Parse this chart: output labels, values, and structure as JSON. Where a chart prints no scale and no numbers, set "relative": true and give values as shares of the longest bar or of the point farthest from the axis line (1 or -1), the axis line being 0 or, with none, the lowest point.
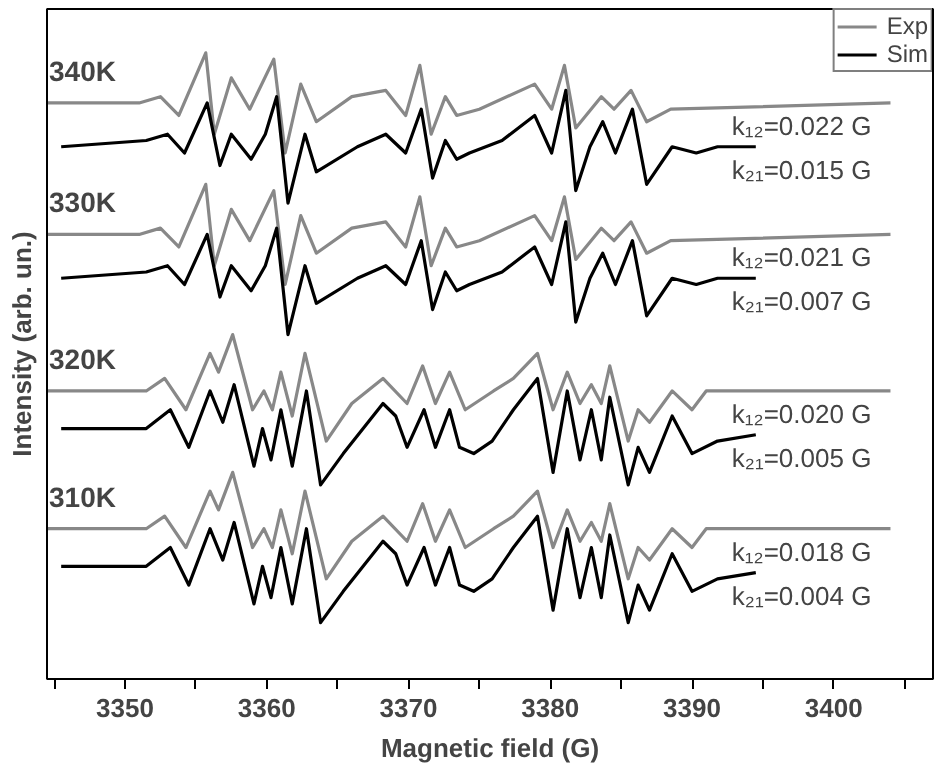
{
  "chart_data": {
    "type": "line",
    "relative": true,
    "xlabel": "Magnetic field (G)",
    "ylabel": "Intensity (arb. un.)",
    "xlim": [
      3344.5,
      3407
    ],
    "xticks": [
      {
        "value": 3345,
        "label": null
      },
      3350,
      {
        "value": 3355,
        "label": null
      },
      3360,
      {
        "value": 3365,
        "label": null
      },
      3370,
      {
        "value": 3375,
        "label": null
      },
      3380,
      {
        "value": 3385,
        "label": null
      },
      3390,
      {
        "value": 3395,
        "label": null
      },
      3400,
      {
        "value": 3405,
        "label": null
      }
    ],
    "tick_labels": "x",
    "legend": "top right",
    "grid": false,
    "series": [
      {
        "name": "Exp",
        "color": "#888888",
        "x": [
          3344.5,
          3351,
          3352.5,
          3353.8,
          3355.7,
          3356.3,
          3357.5,
          3358.8,
          3360.5,
          3361.3,
          3362.4,
          3363.5,
          3366,
          3368.4,
          3369.8,
          3370.8,
          3371.6,
          3372.6,
          3373.4,
          3375,
          3378.9,
          3380.1,
          3381,
          3381.8,
          3383.6,
          3384.5,
          3385.7,
          3386.8,
          3388.5,
          3404
        ],
        "values": [
          0.92,
          0.92,
          0.93,
          0.9,
          1,
          0.87,
          0.96,
          0.91,
          0.99,
          0.84,
          0.95,
          0.89,
          0.93,
          0.94,
          0.9,
          0.98,
          0.87,
          0.93,
          0.9,
          0.91,
          0.95,
          0.91,
          0.98,
          0.88,
          0.93,
          0.91,
          0.94,
          0.89,
          0.91,
          0.92
        ]
      },
      {
        "name": "Sim",
        "color": "#000000",
        "x": [
          3345.5,
          3351.5,
          3353,
          3354.2,
          3355.8,
          3356.7,
          3357.5,
          3358.9,
          3359.9,
          3360.7,
          3361.5,
          3362.7,
          3363.5,
          3366.4,
          3368.4,
          3369.8,
          3370.9,
          3371.7,
          3372.6,
          3373.4,
          3374.3,
          3376.6,
          3378.9,
          3380.1,
          3381.1,
          3381.8,
          3382.8,
          3383.7,
          3384.6,
          3385.8,
          3386.8,
          3388.6,
          3390.3,
          3391.8,
          3394.5
        ],
        "values": [
          0.85,
          0.86,
          0.87,
          0.84,
          0.92,
          0.82,
          0.87,
          0.83,
          0.87,
          0.93,
          0.76,
          0.87,
          0.81,
          0.85,
          0.87,
          0.84,
          0.91,
          0.8,
          0.86,
          0.83,
          0.84,
          0.86,
          0.9,
          0.84,
          0.94,
          0.78,
          0.85,
          0.89,
          0.84,
          0.91,
          0.79,
          0.85,
          0.84,
          0.85,
          0.85
        ]
      },
      {
        "color": "#888888",
        "x": [
          3344.5,
          3351,
          3352.5,
          3353.8,
          3355.7,
          3356.3,
          3357.5,
          3358.8,
          3360.5,
          3361.3,
          3362.4,
          3363.5,
          3366,
          3368.4,
          3369.8,
          3370.8,
          3371.6,
          3372.6,
          3373.4,
          3375,
          3378.9,
          3380.1,
          3381,
          3381.8,
          3383.6,
          3384.5,
          3385.7,
          3386.8,
          3388.5,
          3404
        ],
        "values": [
          0.71,
          0.71,
          0.72,
          0.69,
          0.79,
          0.66,
          0.75,
          0.7,
          0.78,
          0.63,
          0.74,
          0.68,
          0.72,
          0.73,
          0.69,
          0.77,
          0.66,
          0.72,
          0.69,
          0.7,
          0.74,
          0.7,
          0.77,
          0.67,
          0.72,
          0.7,
          0.73,
          0.68,
          0.7,
          0.71
        ]
      },
      {
        "color": "#000000",
        "x": [
          3345.5,
          3351.5,
          3353,
          3354.2,
          3355.8,
          3356.7,
          3357.5,
          3358.9,
          3359.9,
          3360.7,
          3361.5,
          3362.7,
          3363.5,
          3366.4,
          3368.4,
          3369.8,
          3370.9,
          3371.7,
          3372.6,
          3373.4,
          3374.3,
          3376.6,
          3378.9,
          3380.1,
          3381.1,
          3381.8,
          3382.8,
          3383.7,
          3384.6,
          3385.8,
          3386.8,
          3388.6,
          3390.3,
          3391.8,
          3394.5
        ],
        "values": [
          0.64,
          0.65,
          0.66,
          0.63,
          0.71,
          0.61,
          0.66,
          0.62,
          0.66,
          0.72,
          0.55,
          0.66,
          0.6,
          0.64,
          0.66,
          0.63,
          0.7,
          0.59,
          0.65,
          0.62,
          0.63,
          0.65,
          0.69,
          0.63,
          0.73,
          0.57,
          0.64,
          0.68,
          0.63,
          0.7,
          0.58,
          0.64,
          0.63,
          0.64,
          0.64
        ]
      },
      {
        "color": "#888888",
        "x": [
          3344.5,
          3351.5,
          3352.8,
          3354.3,
          3356,
          3356.6,
          3357.6,
          3359,
          3359.8,
          3360.4,
          3361,
          3361.8,
          3362.7,
          3364.2,
          3366,
          3368.2,
          3369.9,
          3371,
          3371.9,
          3372.9,
          3374,
          3376,
          3377.4,
          3379.1,
          3380.2,
          3381.2,
          3382.1,
          3382.9,
          3383.6,
          3384.2,
          3385.5,
          3386.2,
          3387,
          3388.6,
          3390,
          3391,
          3404
        ],
        "values": [
          0.46,
          0.46,
          0.48,
          0.43,
          0.52,
          0.49,
          0.55,
          0.43,
          0.46,
          0.43,
          0.49,
          0.42,
          0.52,
          0.38,
          0.44,
          0.48,
          0.44,
          0.5,
          0.44,
          0.49,
          0.43,
          0.46,
          0.48,
          0.52,
          0.43,
          0.49,
          0.44,
          0.47,
          0.44,
          0.5,
          0.38,
          0.43,
          0.41,
          0.46,
          0.43,
          0.46,
          0.46
        ]
      },
      {
        "color": "#000000",
        "x": [
          3345.5,
          3351.5,
          3353.2,
          3354.5,
          3356,
          3356.9,
          3357.7,
          3359.1,
          3359.7,
          3360.3,
          3361,
          3361.8,
          3362.8,
          3363.8,
          3365.4,
          3368.2,
          3369.1,
          3369.9,
          3371.1,
          3371.9,
          3372.9,
          3373.6,
          3374.6,
          3375.9,
          3377.4,
          3379.1,
          3380.2,
          3381.2,
          3382.1,
          3382.9,
          3383.6,
          3384.2,
          3385.5,
          3386.2,
          3387,
          3388.6,
          3390,
          3391.8,
          3394.5
        ],
        "values": [
          0.4,
          0.4,
          0.43,
          0.37,
          0.46,
          0.41,
          0.47,
          0.34,
          0.4,
          0.35,
          0.43,
          0.34,
          0.46,
          0.31,
          0.36,
          0.44,
          0.42,
          0.37,
          0.43,
          0.37,
          0.43,
          0.37,
          0.36,
          0.38,
          0.43,
          0.48,
          0.33,
          0.46,
          0.35,
          0.43,
          0.35,
          0.45,
          0.31,
          0.37,
          0.33,
          0.42,
          0.36,
          0.38,
          0.39
        ]
      },
      {
        "color": "#888888",
        "x": [
          3344.5,
          3351.5,
          3352.8,
          3354.3,
          3356,
          3356.6,
          3357.6,
          3359,
          3359.8,
          3360.4,
          3361,
          3361.8,
          3362.7,
          3364.2,
          3366,
          3368.2,
          3369.9,
          3371,
          3371.9,
          3372.9,
          3374,
          3376,
          3377.4,
          3379.1,
          3380.2,
          3381.2,
          3382.1,
          3382.9,
          3383.6,
          3384.2,
          3385.5,
          3386.2,
          3387,
          3388.6,
          3390,
          3391,
          3404
        ],
        "values": [
          0.24,
          0.24,
          0.26,
          0.21,
          0.3,
          0.27,
          0.33,
          0.21,
          0.24,
          0.21,
          0.27,
          0.2,
          0.3,
          0.16,
          0.22,
          0.26,
          0.22,
          0.28,
          0.22,
          0.27,
          0.21,
          0.24,
          0.26,
          0.3,
          0.21,
          0.27,
          0.22,
          0.25,
          0.22,
          0.28,
          0.16,
          0.21,
          0.19,
          0.24,
          0.21,
          0.24,
          0.24
        ]
      },
      {
        "color": "#000000",
        "x": [
          3345.5,
          3351.5,
          3353.2,
          3354.5,
          3356,
          3356.9,
          3357.7,
          3359.1,
          3359.7,
          3360.3,
          3361,
          3361.8,
          3362.8,
          3363.8,
          3365.4,
          3368.2,
          3369.1,
          3369.9,
          3371.1,
          3371.9,
          3372.9,
          3373.6,
          3374.6,
          3375.9,
          3377.4,
          3379.1,
          3380.2,
          3381.2,
          3382.1,
          3382.9,
          3383.6,
          3384.2,
          3385.5,
          3386.2,
          3387,
          3388.6,
          3390,
          3391.8,
          3394.5
        ],
        "values": [
          0.18,
          0.18,
          0.21,
          0.15,
          0.24,
          0.19,
          0.25,
          0.12,
          0.18,
          0.13,
          0.21,
          0.12,
          0.24,
          0.09,
          0.14,
          0.22,
          0.2,
          0.15,
          0.21,
          0.15,
          0.21,
          0.15,
          0.14,
          0.16,
          0.21,
          0.26,
          0.11,
          0.24,
          0.13,
          0.21,
          0.13,
          0.23,
          0.09,
          0.15,
          0.11,
          0.2,
          0.14,
          0.16,
          0.17
        ]
      }
    ],
    "annotations": [
      "340K",
      "330K",
      "320K",
      "310K",
      "k₁₂=0.022 G",
      "k₂₁=0.015 G",
      "k₁₂=0.021 G",
      "k₂₁=0.007 G",
      "k₁₂=0.020 G",
      "k₂₁=0.005 G",
      "k₁₂=0.018 G",
      "k₂₁=0.004 G"
    ]
  }
}
